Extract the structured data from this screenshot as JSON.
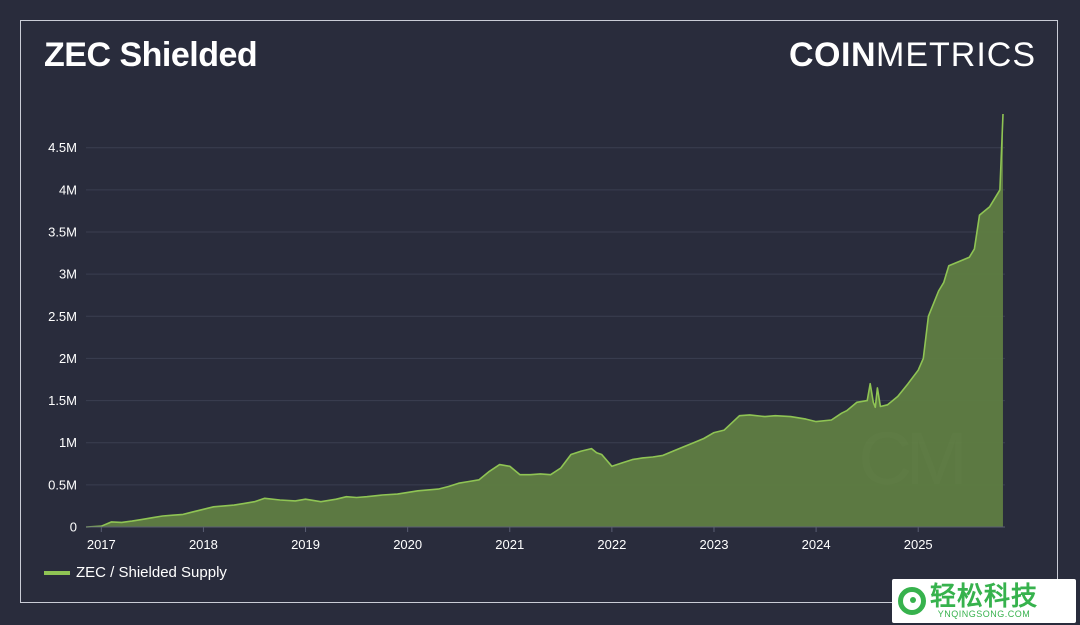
{
  "header": {
    "title": "ZEC Shielded",
    "brand_bold": "COIN",
    "brand_light": "METRICS"
  },
  "chart_data": {
    "type": "area",
    "title": "ZEC Shielded",
    "xlabel": "",
    "ylabel": "",
    "x_ticks": [
      "2017",
      "2018",
      "2019",
      "2020",
      "2021",
      "2022",
      "2023",
      "2024",
      "2025"
    ],
    "y_ticks": [
      "0",
      "0.5M",
      "1M",
      "1.5M",
      "2M",
      "2.5M",
      "3M",
      "3.5M",
      "4M",
      "4.5M"
    ],
    "ylim": [
      0,
      4900000
    ],
    "xlim": [
      2016.85,
      2025.85
    ],
    "grid": true,
    "legend_placement": "bottom-left",
    "watermark": "CM",
    "series": [
      {
        "name": "ZEC / Shielded Supply",
        "color": "#8fc454",
        "fill": "#5f7d42",
        "x": [
          2016.85,
          2017.0,
          2017.1,
          2017.2,
          2017.3,
          2017.4,
          2017.5,
          2017.6,
          2017.7,
          2017.8,
          2017.9,
          2018.0,
          2018.1,
          2018.2,
          2018.3,
          2018.4,
          2018.5,
          2018.6,
          2018.75,
          2018.9,
          2019.0,
          2019.15,
          2019.3,
          2019.4,
          2019.5,
          2019.6,
          2019.75,
          2019.9,
          2020.0,
          2020.1,
          2020.2,
          2020.3,
          2020.4,
          2020.5,
          2020.6,
          2020.7,
          2020.8,
          2020.9,
          2021.0,
          2021.1,
          2021.2,
          2021.3,
          2021.4,
          2021.5,
          2021.6,
          2021.7,
          2021.8,
          2021.85,
          2021.9,
          2022.0,
          2022.1,
          2022.2,
          2022.3,
          2022.4,
          2022.5,
          2022.6,
          2022.7,
          2022.8,
          2022.9,
          2023.0,
          2023.1,
          2023.25,
          2023.35,
          2023.5,
          2023.6,
          2023.75,
          2023.9,
          2024.0,
          2024.15,
          2024.25,
          2024.3,
          2024.4,
          2024.5,
          2024.53,
          2024.56,
          2024.58,
          2024.6,
          2024.63,
          2024.7,
          2024.8,
          2024.9,
          2025.0,
          2025.05,
          2025.1,
          2025.2,
          2025.25,
          2025.3,
          2025.4,
          2025.5,
          2025.55,
          2025.6,
          2025.7,
          2025.75,
          2025.8,
          2025.83
        ],
        "values": [
          0,
          10000,
          60000,
          55000,
          70000,
          90000,
          110000,
          130000,
          140000,
          150000,
          180000,
          210000,
          240000,
          250000,
          260000,
          280000,
          300000,
          340000,
          320000,
          310000,
          330000,
          300000,
          330000,
          360000,
          350000,
          360000,
          380000,
          390000,
          410000,
          430000,
          440000,
          450000,
          480000,
          520000,
          540000,
          560000,
          660000,
          740000,
          720000,
          620000,
          620000,
          630000,
          620000,
          700000,
          860000,
          900000,
          930000,
          880000,
          860000,
          720000,
          760000,
          800000,
          820000,
          830000,
          850000,
          900000,
          950000,
          1000000,
          1050000,
          1120000,
          1150000,
          1320000,
          1330000,
          1310000,
          1320000,
          1310000,
          1280000,
          1250000,
          1270000,
          1350000,
          1380000,
          1480000,
          1500000,
          1700000,
          1480000,
          1420000,
          1650000,
          1430000,
          1450000,
          1550000,
          1700000,
          1860000,
          2000000,
          2500000,
          2800000,
          2900000,
          3100000,
          3150000,
          3200000,
          3300000,
          3700000,
          3800000,
          3900000,
          4000000,
          4900000
        ]
      }
    ]
  },
  "watermark_badge": {
    "cn_text": "轻松科技",
    "en_text": "YNQINGSONG.COM"
  }
}
